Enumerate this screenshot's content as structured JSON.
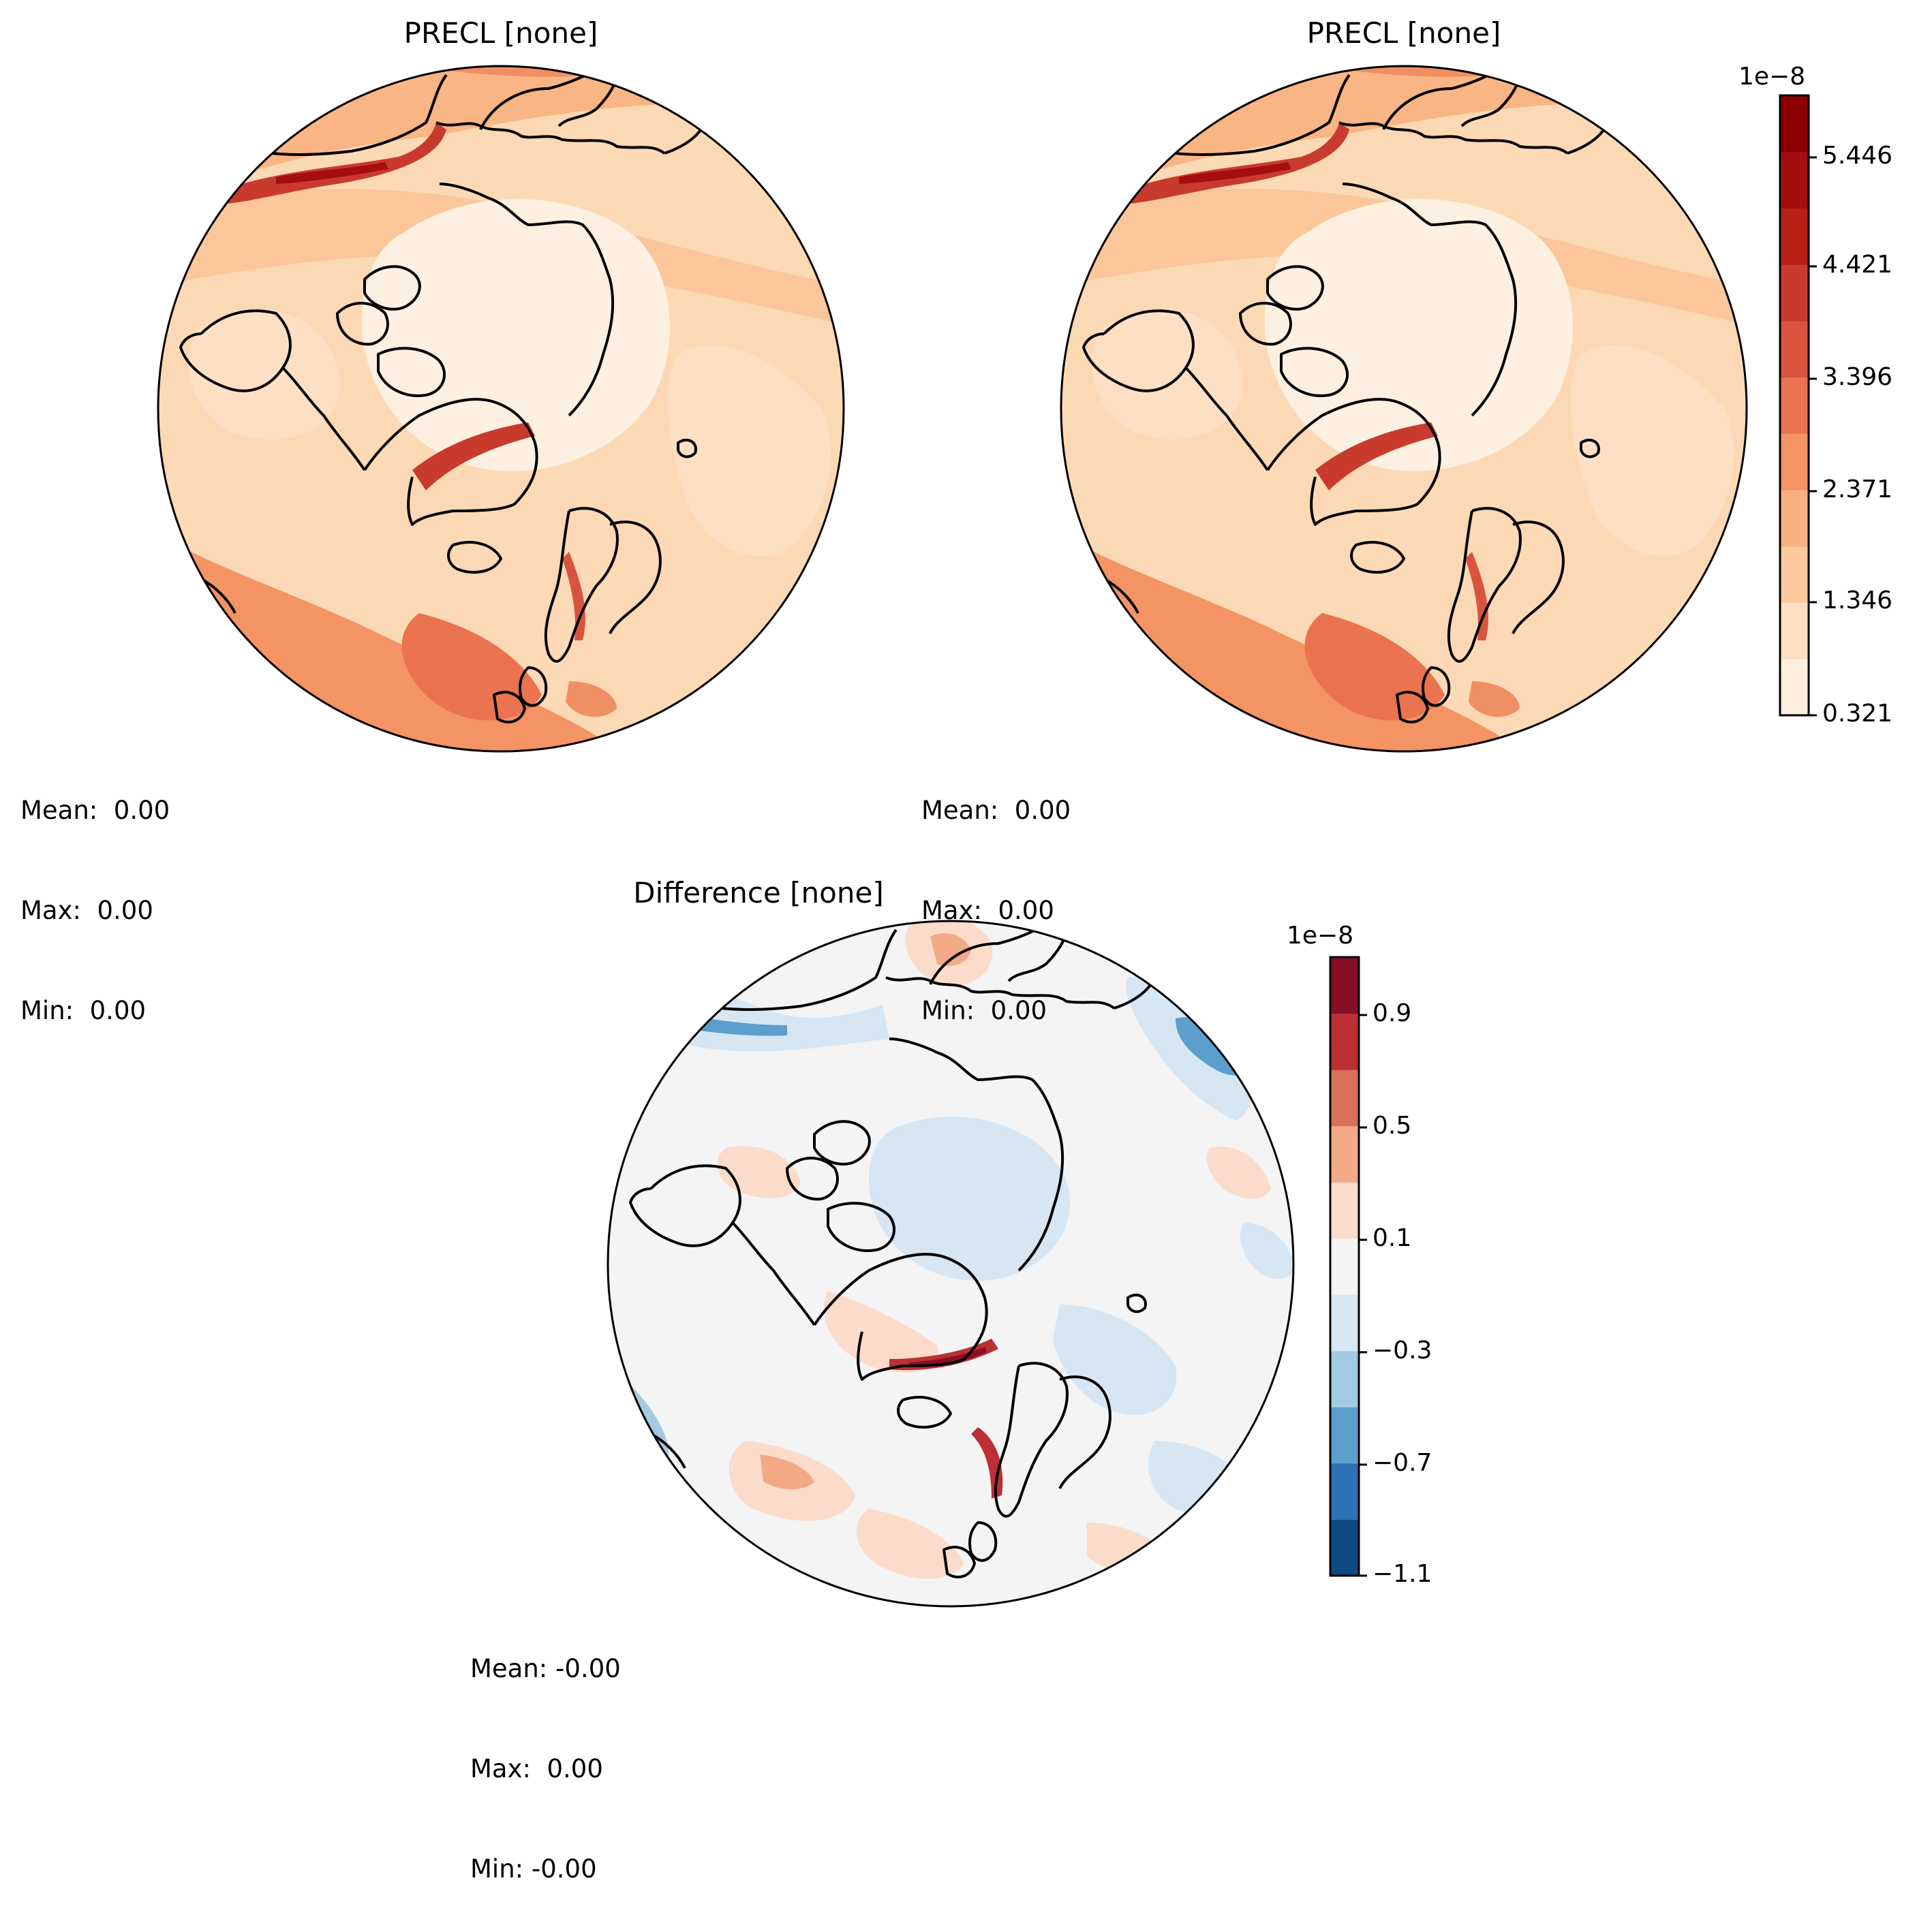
{
  "panels": [
    {
      "title": "PRECL [none]",
      "stats": {
        "mean": "Mean:  0.00",
        "max": "Max:  0.00",
        "min": "Min:  0.00"
      }
    },
    {
      "title": "PRECL [none]",
      "stats": {
        "mean": "Mean:  0.00",
        "max": "Max:  0.00",
        "min": "Min:  0.00"
      }
    },
    {
      "title": "Difference [none]",
      "stats": {
        "mean": "Mean: -0.00",
        "max": "Max:  0.00",
        "min": "Min: -0.00"
      }
    }
  ],
  "colorbars": [
    {
      "exponent_label": "1e−8",
      "tick_labels": [
        "5.446",
        "4.421",
        "3.396",
        "2.371",
        "1.346",
        "0.321"
      ],
      "colors": [
        "#fdf0e1",
        "#fde0c4",
        "#fcca9e",
        "#f9b07f",
        "#f49363",
        "#e9744f",
        "#da533f",
        "#c93a2e",
        "#b82016",
        "#a50e0e",
        "#8b0000"
      ]
    },
    {
      "exponent_label": "1e−8",
      "tick_labels": [
        "0.9",
        "0.5",
        "0.1",
        "−0.3",
        "−0.7",
        "−1.1"
      ],
      "colors": [
        "#0f4a82",
        "#2c72b4",
        "#5c9fcc",
        "#a2cbe2",
        "#d6e6f2",
        "#f4f4f4",
        "#fbdccb",
        "#f4a987",
        "#d9705b",
        "#bb2f35",
        "#870f25"
      ]
    }
  ],
  "chart_data": [
    {
      "type": "heatmap",
      "title": "PRECL [none]",
      "projection": "north polar stereographic",
      "colormap": "OrRd-like (light cream to dark red)",
      "color_scale_multiplier": "1e-8",
      "levels": [
        0.321,
        1.346,
        2.371,
        3.396,
        4.421,
        5.446
      ],
      "stats": {
        "mean": 0.0,
        "max": 0.0,
        "min": 0.0
      }
    },
    {
      "type": "heatmap",
      "title": "PRECL [none]",
      "projection": "north polar stereographic",
      "colormap": "OrRd-like (light cream to dark red)",
      "color_scale_multiplier": "1e-8",
      "levels": [
        0.321,
        1.346,
        2.371,
        3.396,
        4.421,
        5.446
      ],
      "stats": {
        "mean": 0.0,
        "max": 0.0,
        "min": 0.0
      }
    },
    {
      "type": "heatmap",
      "title": "Difference [none]",
      "projection": "north polar stereographic",
      "colormap": "RdBu_r (blue negative, red positive)",
      "color_scale_multiplier": "1e-8",
      "levels": [
        -1.1,
        -0.7,
        -0.3,
        0.1,
        0.5,
        0.9
      ],
      "stats": {
        "mean": -0.0,
        "max": 0.0,
        "min": -0.0
      }
    }
  ]
}
